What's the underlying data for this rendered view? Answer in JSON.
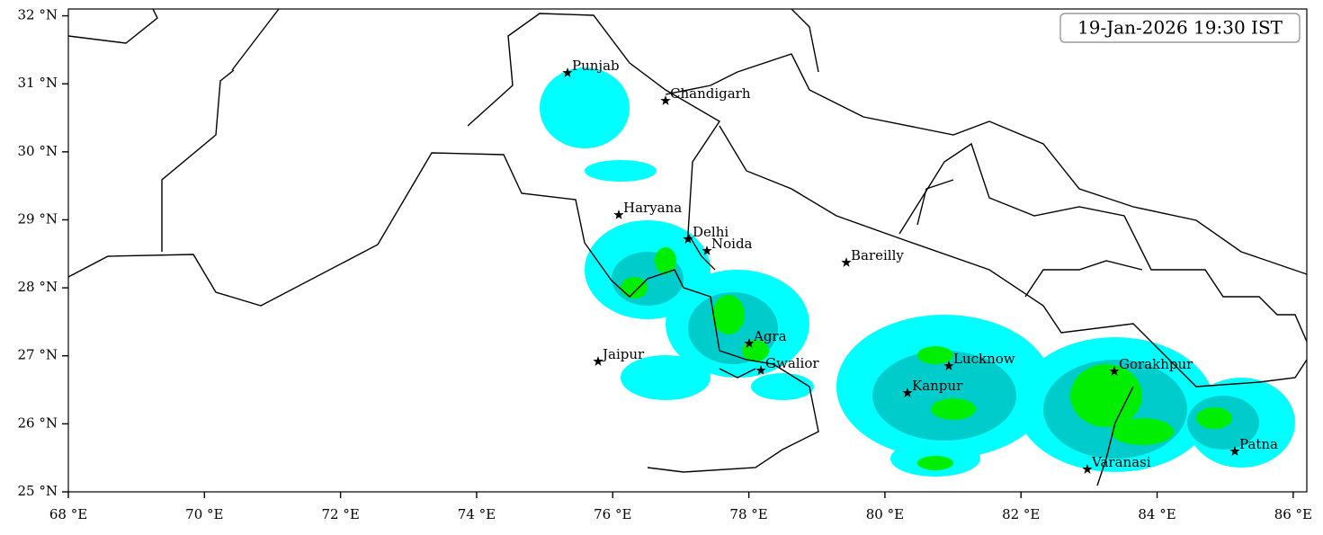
{
  "map": {
    "timestamp": "19-Jan-2026 19:30 IST",
    "xlim": [
      68,
      86.2
    ],
    "ylim": [
      25,
      32.1
    ],
    "xticks": [
      {
        "value": 68,
        "label": "68 °E"
      },
      {
        "value": 70,
        "label": "70 °E"
      },
      {
        "value": 72,
        "label": "72 °E"
      },
      {
        "value": 74,
        "label": "74 °E"
      },
      {
        "value": 76,
        "label": "76 °E"
      },
      {
        "value": 78,
        "label": "78 °E"
      },
      {
        "value": 80,
        "label": "80 °E"
      },
      {
        "value": 82,
        "label": "82 °E"
      },
      {
        "value": 84,
        "label": "84 °E"
      },
      {
        "value": 86,
        "label": "86 °E"
      }
    ],
    "yticks": [
      {
        "value": 25,
        "label": "25 °N"
      },
      {
        "value": 26,
        "label": "26 °N"
      },
      {
        "value": 27,
        "label": "27 °N"
      },
      {
        "value": 28,
        "label": "28 °N"
      },
      {
        "value": 29,
        "label": "29 °N"
      },
      {
        "value": 30,
        "label": "30 °N"
      },
      {
        "value": 31,
        "label": "31 °N"
      },
      {
        "value": 32,
        "label": "32 °N"
      }
    ],
    "cities": [
      "Punjab",
      "Chandigarh",
      "Haryana",
      "Delhi",
      "Noida",
      "Bareilly",
      "Agra",
      "Jaipur",
      "Gwalior",
      "Lucknow",
      "Kanpur",
      "Gorakhpur",
      "Varanasi",
      "Patna"
    ]
  }
}
